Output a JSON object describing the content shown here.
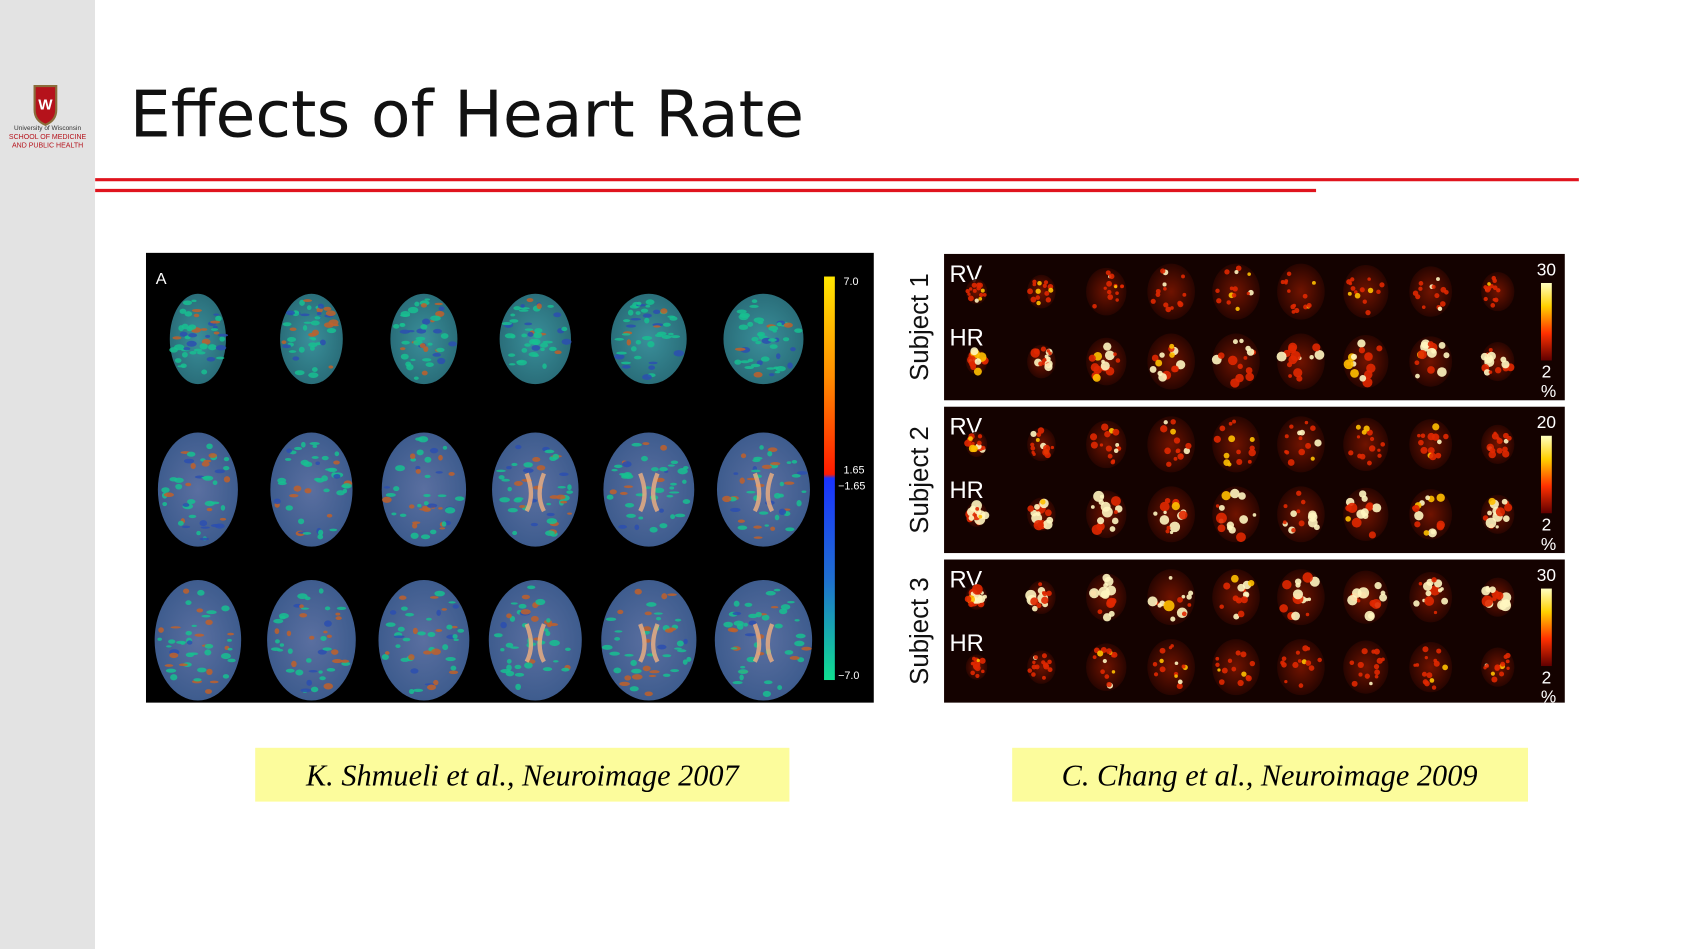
{
  "header": {
    "title": "Effects of Heart Rate",
    "logo": [
      "University of Wisconsin",
      "SCHOOL OF MEDICINE",
      "AND PUBLIC HEALTH"
    ]
  },
  "figure_left": {
    "label": "A",
    "colorbar_labels": [
      "7.0",
      "1.65",
      "−1.65",
      "−7.0"
    ],
    "caption": "K. Shmueli et al., Neuroimage 2007"
  },
  "figure_right": {
    "rows": [
      {
        "subject": "Subject 1",
        "labels": [
          "RV",
          "HR"
        ],
        "scale": [
          "30",
          "2",
          "%"
        ]
      },
      {
        "subject": "Subject 2",
        "labels": [
          "RV",
          "HR"
        ],
        "scale": [
          "20",
          "2",
          "%"
        ]
      },
      {
        "subject": "Subject 3",
        "labels": [
          "RV",
          "HR"
        ],
        "scale": [
          "30",
          "2",
          "%"
        ]
      }
    ],
    "caption": "C. Chang et al., Neuroimage 2009"
  }
}
